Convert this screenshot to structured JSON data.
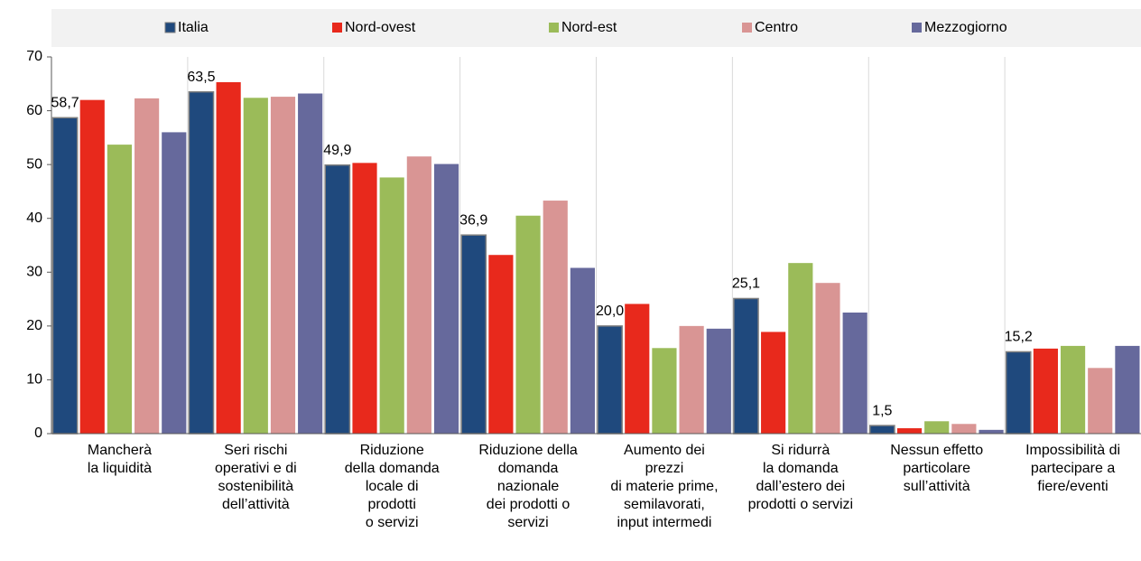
{
  "chart_data": {
    "type": "bar",
    "categories": [
      "Mancherà\nla liquidità",
      "Seri rischi\noperativi e di\nsostenibilità\ndell’attività",
      "Riduzione\ndella domanda\nlocale di\nprodotti\no servizi",
      "Riduzione della\ndomanda\nnazionale\ndei prodotti o\nservizi",
      "Aumento dei\nprezzi\ndi materie prime,\nsemilavorati,\ninput intermedi",
      "Si ridurrà\nla domanda\ndall’estero dei\nprodotti o servizi",
      "Nessun effetto\nparticolare\nsull’attività",
      "Impossibilità di\npartecipare a\nfiere/eventi"
    ],
    "series": [
      {
        "name": "Italia",
        "color": "#1f497d",
        "values": [
          58.7,
          63.5,
          49.9,
          36.9,
          20.0,
          25.1,
          1.5,
          15.2
        ],
        "value_labels": [
          "58,7",
          "63,5",
          "49,9",
          "36,9",
          "20,0",
          "25,1",
          "1,5",
          "15,2"
        ]
      },
      {
        "name": "Nord-ovest",
        "color": "#e8291c",
        "values": [
          62.0,
          65.3,
          50.3,
          33.2,
          24.1,
          18.9,
          1.0,
          15.8
        ]
      },
      {
        "name": "Nord-est",
        "color": "#9bbb59",
        "values": [
          53.7,
          62.4,
          47.6,
          40.5,
          15.9,
          31.7,
          2.3,
          16.3
        ]
      },
      {
        "name": "Centro",
        "color": "#d99594",
        "values": [
          62.3,
          62.6,
          51.5,
          43.3,
          20.0,
          28.0,
          1.8,
          12.2
        ]
      },
      {
        "name": "Mezzogiorno",
        "color": "#66699c",
        "values": [
          56.0,
          63.2,
          50.1,
          30.8,
          19.5,
          22.5,
          0.7,
          16.3
        ]
      }
    ],
    "ylim": [
      0,
      70
    ],
    "yticks": [
      0,
      10,
      20,
      30,
      40,
      50,
      60,
      70
    ],
    "legend": "top"
  }
}
